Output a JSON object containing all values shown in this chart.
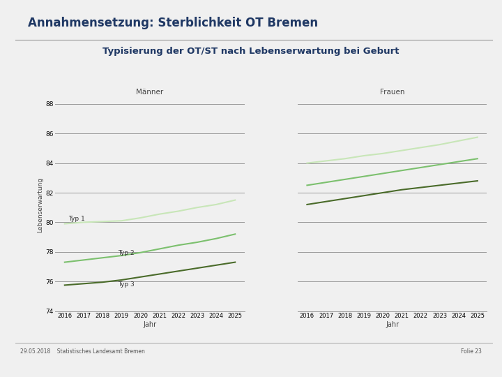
{
  "title": "Annahmensetzung: Sterblichkeit OT Bremen",
  "subtitle": "Typisierung der OT/ST nach Lebenserwartung bei Geburt",
  "years": [
    2016,
    2017,
    2018,
    2019,
    2020,
    2021,
    2022,
    2023,
    2024,
    2025
  ],
  "maenner_title": "Männer",
  "frauen_title": "Frauen",
  "xlabel": "Jahr",
  "ylabel": "Lebenserwartung",
  "ylim": [
    74,
    88.4
  ],
  "yticks": [
    74,
    76,
    78,
    80,
    82,
    84,
    86,
    88
  ],
  "maenner": {
    "typ1": [
      79.9,
      80.0,
      80.05,
      80.1,
      80.3,
      80.55,
      80.75,
      81.0,
      81.2,
      81.5
    ],
    "typ2": [
      77.3,
      77.45,
      77.6,
      77.75,
      77.95,
      78.2,
      78.45,
      78.65,
      78.9,
      79.2
    ],
    "typ3": [
      75.75,
      75.85,
      75.95,
      76.1,
      76.3,
      76.5,
      76.7,
      76.9,
      77.1,
      77.3
    ]
  },
  "frauen": {
    "typ1": [
      84.0,
      84.15,
      84.3,
      84.5,
      84.65,
      84.85,
      85.05,
      85.25,
      85.5,
      85.75
    ],
    "typ2": [
      82.5,
      82.7,
      82.9,
      83.1,
      83.3,
      83.5,
      83.7,
      83.9,
      84.1,
      84.3
    ],
    "typ3": [
      81.2,
      81.4,
      81.6,
      81.8,
      82.0,
      82.2,
      82.35,
      82.5,
      82.65,
      82.8
    ]
  },
  "color_typ1": "#c8e6b8",
  "color_typ2": "#7cc06e",
  "color_typ3": "#4a6b2a",
  "grid_color": "#999999",
  "bg_color": "#f0f0f0",
  "title_color": "#1f3864",
  "subtitle_color": "#1f3864",
  "footer_text": "29.05.2018    Statistisches Landesamt Bremen",
  "folie_text": "Folie 23",
  "label_typ1": "Typ 1",
  "label_typ2": "Typ 2",
  "label_typ3": "Typ 3"
}
